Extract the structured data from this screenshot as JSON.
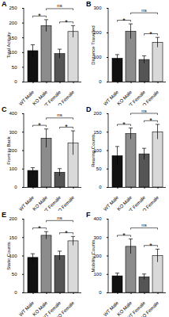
{
  "chart_data": [
    {
      "type": "bar",
      "panel_label": "A",
      "ylabel": "Total Activity",
      "categories": [
        "WT Male",
        "KO Male",
        "WT Female",
        "KO Female"
      ],
      "values": [
        105,
        190,
        95,
        170
      ],
      "errors": [
        20,
        20,
        15,
        20
      ],
      "colors": [
        "#111111",
        "#8c8c8c",
        "#555555",
        "#d9d9d9"
      ],
      "ylim": [
        0,
        250
      ],
      "yticks": [
        0,
        50,
        100,
        150,
        200,
        250
      ],
      "comparisons": [
        {
          "groups": [
            "WT Male",
            "KO Male"
          ],
          "label": "*"
        },
        {
          "groups": [
            "KO Male",
            "KO Female"
          ],
          "label": "ns"
        },
        {
          "groups": [
            "WT Female",
            "KO Female"
          ],
          "label": "*"
        }
      ]
    },
    {
      "type": "bar",
      "panel_label": "B",
      "ylabel": "Distance Travelled",
      "categories": [
        "WT Male",
        "KO Male",
        "WT Female",
        "KO Female"
      ],
      "values": [
        95,
        205,
        90,
        160
      ],
      "errors": [
        15,
        30,
        15,
        20
      ],
      "colors": [
        "#111111",
        "#8c8c8c",
        "#555555",
        "#d9d9d9"
      ],
      "ylim": [
        0,
        300
      ],
      "yticks": [
        0,
        100,
        200,
        300
      ],
      "comparisons": [
        {
          "groups": [
            "WT Male",
            "KO Male"
          ],
          "label": "*"
        },
        {
          "groups": [
            "KO Male",
            "KO Female"
          ],
          "label": "ns"
        },
        {
          "groups": [
            "WT Female",
            "KO Female"
          ],
          "label": "*"
        }
      ]
    },
    {
      "type": "bar",
      "panel_label": "C",
      "ylabel": "Front to Back",
      "categories": [
        "WT Male",
        "KO Male",
        "WT Female",
        "KO Female"
      ],
      "values": [
        90,
        265,
        80,
        240
      ],
      "errors": [
        15,
        50,
        20,
        65
      ],
      "colors": [
        "#111111",
        "#8c8c8c",
        "#555555",
        "#d9d9d9"
      ],
      "ylim": [
        0,
        400
      ],
      "yticks": [
        0,
        100,
        200,
        300,
        400
      ],
      "comparisons": [
        {
          "groups": [
            "WT Male",
            "KO Male"
          ],
          "label": "*"
        },
        {
          "groups": [
            "KO Male",
            "KO Female"
          ],
          "label": "ns"
        },
        {
          "groups": [
            "WT Female",
            "KO Female"
          ],
          "label": "*"
        }
      ]
    },
    {
      "type": "bar",
      "panel_label": "D",
      "ylabel": "Rearing Counts",
      "categories": [
        "WT Male",
        "KO Male",
        "WT Female",
        "KO Female"
      ],
      "values": [
        85,
        145,
        90,
        150
      ],
      "errors": [
        25,
        15,
        15,
        20
      ],
      "colors": [
        "#111111",
        "#8c8c8c",
        "#555555",
        "#d9d9d9"
      ],
      "ylim": [
        0,
        200
      ],
      "yticks": [
        0,
        50,
        100,
        150,
        200
      ],
      "comparisons": [
        {
          "groups": [
            "WT Male",
            "KO Male"
          ],
          "label": "*"
        },
        {
          "groups": [
            "KO Male",
            "KO Female"
          ],
          "label": "ns"
        },
        {
          "groups": [
            "WT Female",
            "KO Female"
          ],
          "label": "*"
        }
      ]
    },
    {
      "type": "bar",
      "panel_label": "E",
      "ylabel": "Static Counts",
      "categories": [
        "WT Male",
        "KO Male",
        "WT Female",
        "KO Female"
      ],
      "values": [
        95,
        155,
        100,
        140
      ],
      "errors": [
        10,
        10,
        12,
        12
      ],
      "colors": [
        "#111111",
        "#8c8c8c",
        "#555555",
        "#d9d9d9"
      ],
      "ylim": [
        0,
        200
      ],
      "yticks": [
        0,
        50,
        100,
        150,
        200
      ],
      "comparisons": [
        {
          "groups": [
            "WT Male",
            "KO Male"
          ],
          "label": "*"
        },
        {
          "groups": [
            "KO Male",
            "KO Female"
          ],
          "label": "ns"
        },
        {
          "groups": [
            "WT Female",
            "KO Female"
          ],
          "label": "*"
        }
      ]
    },
    {
      "type": "bar",
      "panel_label": "F",
      "ylabel": "Mobility Counts",
      "categories": [
        "WT Male",
        "KO Male",
        "WT Female",
        "KO Female"
      ],
      "values": [
        90,
        250,
        85,
        200
      ],
      "errors": [
        15,
        40,
        15,
        35
      ],
      "colors": [
        "#111111",
        "#8c8c8c",
        "#555555",
        "#d9d9d9"
      ],
      "ylim": [
        0,
        400
      ],
      "yticks": [
        0,
        100,
        200,
        300,
        400
      ],
      "comparisons": [
        {
          "groups": [
            "WT Male",
            "KO Male"
          ],
          "label": "*"
        },
        {
          "groups": [
            "KO Male",
            "KO Female"
          ],
          "label": "ns"
        },
        {
          "groups": [
            "WT Female",
            "KO Female"
          ],
          "label": "*"
        }
      ]
    }
  ]
}
